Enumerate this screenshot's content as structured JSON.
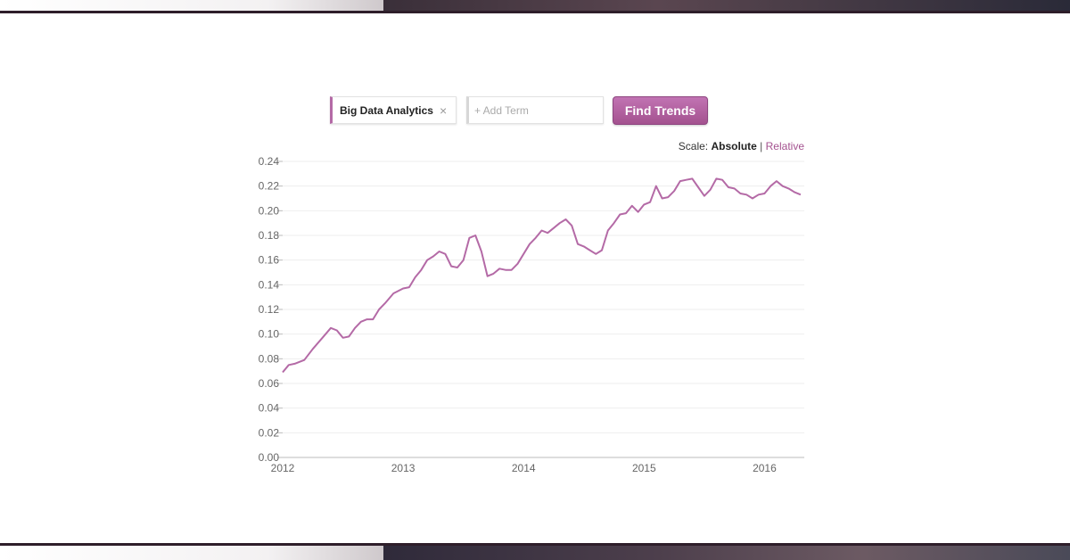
{
  "search": {
    "term_label": "Big Data Analytics",
    "remove_glyph": "×",
    "add_placeholder": "+ Add Term",
    "find_button": "Find Trends"
  },
  "scale": {
    "prefix": "Scale:",
    "absolute": "Absolute",
    "separator": "|",
    "relative": "Relative"
  },
  "colors": {
    "accent": "#b46aa6",
    "button": "#a4528f"
  },
  "chart_data": {
    "type": "line",
    "title": "",
    "xlabel": "",
    "ylabel": "",
    "xlim": [
      2012,
      2016.33
    ],
    "ylim": [
      0,
      0.24
    ],
    "grid": true,
    "x_ticks": [
      "2012",
      "2013",
      "2014",
      "2015",
      "2016"
    ],
    "y_ticks": [
      "0.00",
      "0.02",
      "0.04",
      "0.06",
      "0.08",
      "0.10",
      "0.12",
      "0.14",
      "0.16",
      "0.18",
      "0.20",
      "0.22",
      "0.24"
    ],
    "series": [
      {
        "x": [
          2012.0,
          2012.05,
          2012.1,
          2012.18,
          2012.25,
          2012.33,
          2012.4,
          2012.45,
          2012.5,
          2012.55,
          2012.6,
          2012.65,
          2012.7,
          2012.75,
          2012.8,
          2012.85,
          2012.92,
          2013.0,
          2013.05,
          2013.1,
          2013.15,
          2013.2,
          2013.25,
          2013.3,
          2013.35,
          2013.4,
          2013.45,
          2013.5,
          2013.55,
          2013.6,
          2013.65,
          2013.7,
          2013.75,
          2013.8,
          2013.85,
          2013.9,
          2013.95,
          2014.0,
          2014.05,
          2014.1,
          2014.15,
          2014.2,
          2014.25,
          2014.3,
          2014.35,
          2014.4,
          2014.45,
          2014.5,
          2014.55,
          2014.6,
          2014.65,
          2014.7,
          2014.75,
          2014.8,
          2014.85,
          2014.9,
          2014.95,
          2015.0,
          2015.05,
          2015.1,
          2015.15,
          2015.2,
          2015.25,
          2015.3,
          2015.35,
          2015.4,
          2015.45,
          2015.5,
          2015.55,
          2015.6,
          2015.65,
          2015.7,
          2015.75,
          2015.8,
          2015.85,
          2015.9,
          2015.95,
          2016.0,
          2016.05,
          2016.1,
          2016.15,
          2016.2,
          2016.25,
          2016.3
        ],
        "y": [
          0.069,
          0.075,
          0.076,
          0.079,
          0.088,
          0.097,
          0.105,
          0.103,
          0.097,
          0.098,
          0.105,
          0.11,
          0.112,
          0.112,
          0.12,
          0.125,
          0.133,
          0.137,
          0.138,
          0.146,
          0.152,
          0.16,
          0.163,
          0.167,
          0.165,
          0.155,
          0.154,
          0.16,
          0.178,
          0.18,
          0.167,
          0.147,
          0.149,
          0.153,
          0.152,
          0.152,
          0.157,
          0.165,
          0.173,
          0.178,
          0.184,
          0.182,
          0.186,
          0.19,
          0.193,
          0.188,
          0.173,
          0.171,
          0.168,
          0.165,
          0.168,
          0.184,
          0.19,
          0.197,
          0.198,
          0.204,
          0.199,
          0.205,
          0.207,
          0.22,
          0.21,
          0.211,
          0.216,
          0.224,
          0.225,
          0.226,
          0.219,
          0.212,
          0.217,
          0.226,
          0.225,
          0.219,
          0.218,
          0.214,
          0.213,
          0.21,
          0.213,
          0.214,
          0.22,
          0.224,
          0.22,
          0.218,
          0.215,
          0.213
        ]
      }
    ]
  }
}
